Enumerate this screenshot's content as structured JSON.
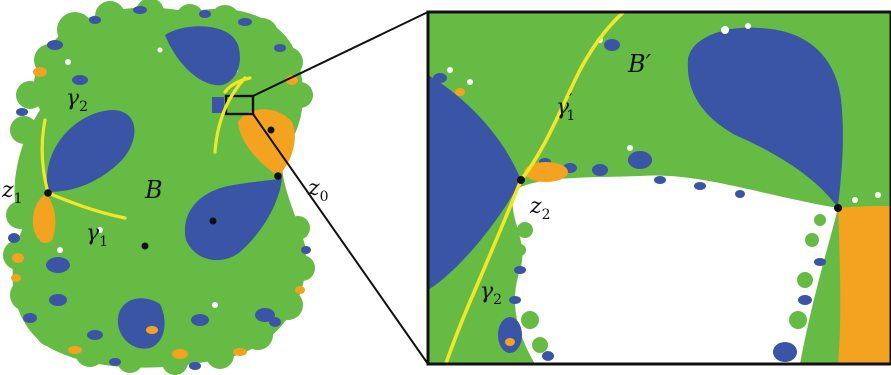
{
  "colors": {
    "green": "#66bb44",
    "blue": "#3a55a6",
    "orange": "#f4a321",
    "yellow": "#f2e62b",
    "ink": "#111111",
    "white": "#ffffff"
  },
  "labels": {
    "left": {
      "z0": {
        "base": "z",
        "sub": "0"
      },
      "z1": {
        "base": "z",
        "sub": "1"
      },
      "gamma1": {
        "base": "γ",
        "sub": "1"
      },
      "gamma2": {
        "base": "γ",
        "sub": "2"
      },
      "B": "B"
    },
    "right": {
      "Bprime": "B′",
      "z2": {
        "base": "z",
        "sub": "2"
      },
      "gamma1p": {
        "base": "γ",
        "sup": "′",
        "sub": "1"
      },
      "gamma2": {
        "base": "γ",
        "sub": "2"
      }
    }
  }
}
